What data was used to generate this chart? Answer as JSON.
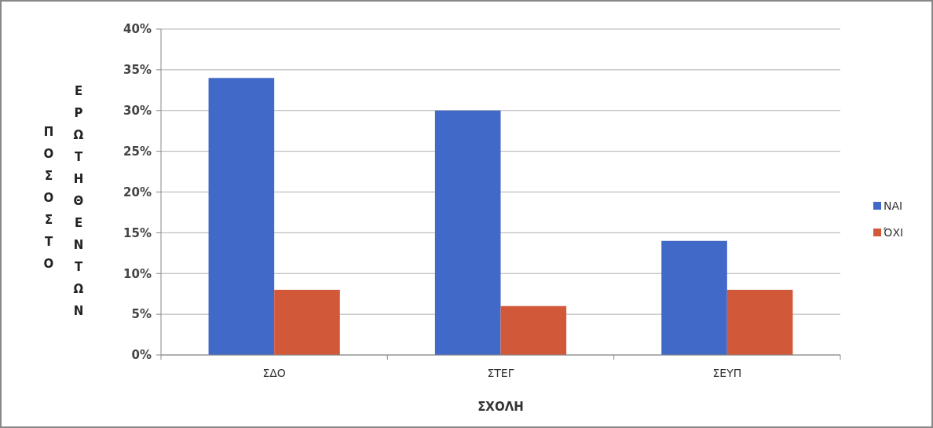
{
  "chart_data": {
    "type": "bar",
    "xlabel": "ΣΧΟΛΗ",
    "ylabel": "ΠΟΣΟΣΤΟ ΕΡΩΤΗΘΕΝΤΩΝ",
    "categories": [
      "ΣΔΟ",
      "ΣΤΕΓ",
      "ΣΕΥΠ"
    ],
    "series": [
      {
        "name": "ΝΑΙ",
        "color": "#4169c8",
        "values": [
          34,
          30,
          14
        ]
      },
      {
        "name": "ΌΧΙ",
        "color": "#d2583a",
        "values": [
          8,
          6,
          8
        ]
      }
    ],
    "ylim": [
      0,
      40
    ],
    "yticks": [
      {
        "value": 0,
        "label": "0%"
      },
      {
        "value": 5,
        "label": "5%"
      },
      {
        "value": 10,
        "label": "10%"
      },
      {
        "value": 15,
        "label": "15%"
      },
      {
        "value": 20,
        "label": "20%"
      },
      {
        "value": 25,
        "label": "25%"
      },
      {
        "value": 30,
        "label": "30%"
      },
      {
        "value": 35,
        "label": "35%"
      },
      {
        "value": 40,
        "label": "40%"
      }
    ],
    "grid": "y",
    "legend": "right"
  }
}
